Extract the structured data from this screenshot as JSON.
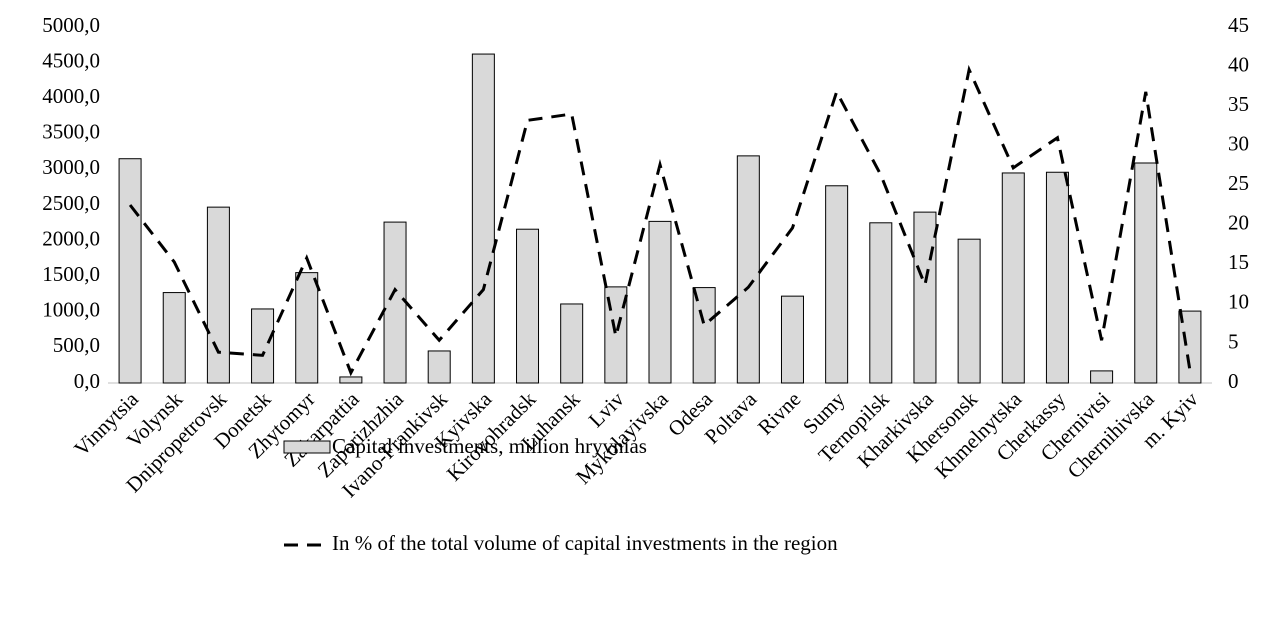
{
  "chart_data": {
    "type": "bar",
    "categories": [
      "Vinnytsia",
      "Volynsk",
      "Dnipropetrovsk",
      "Donetsk",
      "Zhytomyr",
      "Zakarpattia",
      "Zaporizhzhia",
      "Ivano-Frankivsk",
      "Kyivska",
      "Kirovohradsk",
      "Luhansk",
      "Lviv",
      "Mykolayivska",
      "Odesa",
      "Poltava",
      "Rivne",
      "Sumy",
      "Ternopilsk",
      "Kharkivska",
      "Khersonsk",
      "Khmelnytska",
      "Cherkassy",
      "Chernivtsi",
      "Chernihivska",
      "m. Kyiv"
    ],
    "series": [
      {
        "name": "Capital investments, million hryvnias",
        "type": "bar",
        "color": "#d9d9d9",
        "values": [
          3150,
          1270,
          2470,
          1040,
          1550,
          85,
          2260,
          450,
          4620,
          2160,
          1110,
          1350,
          2270,
          1340,
          3190,
          1220,
          2770,
          2250,
          2400,
          2020,
          2950,
          2960,
          170,
          3090,
          1010
        ]
      },
      {
        "name": "In % of the total volume of capital investments in the region",
        "type": "line",
        "axis": "y2",
        "color": "#000000",
        "values": [
          22.5,
          15.3,
          3.9,
          3.5,
          15.8,
          1.3,
          11.8,
          5.4,
          11.8,
          33.2,
          34.0,
          5.9,
          27.6,
          7.3,
          12.1,
          19.6,
          36.8,
          26.3,
          12.4,
          39.6,
          27.2,
          31.0,
          5.4,
          36.8,
          1.6
        ]
      }
    ],
    "ylim": [
      0,
      5000
    ],
    "yticks": [
      {
        "value": 0,
        "label": "0,0"
      },
      {
        "value": 500,
        "label": "500,0"
      },
      {
        "value": 1000,
        "label": "1000,0"
      },
      {
        "value": 1500,
        "label": "1500,0"
      },
      {
        "value": 2000,
        "label": "2000,0"
      },
      {
        "value": 2500,
        "label": "2500,0"
      },
      {
        "value": 3000,
        "label": "3000,0"
      },
      {
        "value": 3500,
        "label": "3500,0"
      },
      {
        "value": 4000,
        "label": "4000,0"
      },
      {
        "value": 4500,
        "label": "4500,0"
      },
      {
        "value": 5000,
        "label": "5000,0"
      }
    ],
    "y2lim": [
      0,
      45
    ],
    "y2ticks": [
      0,
      5,
      10,
      15,
      20,
      25,
      30,
      35,
      40,
      45
    ],
    "grid": false
  }
}
